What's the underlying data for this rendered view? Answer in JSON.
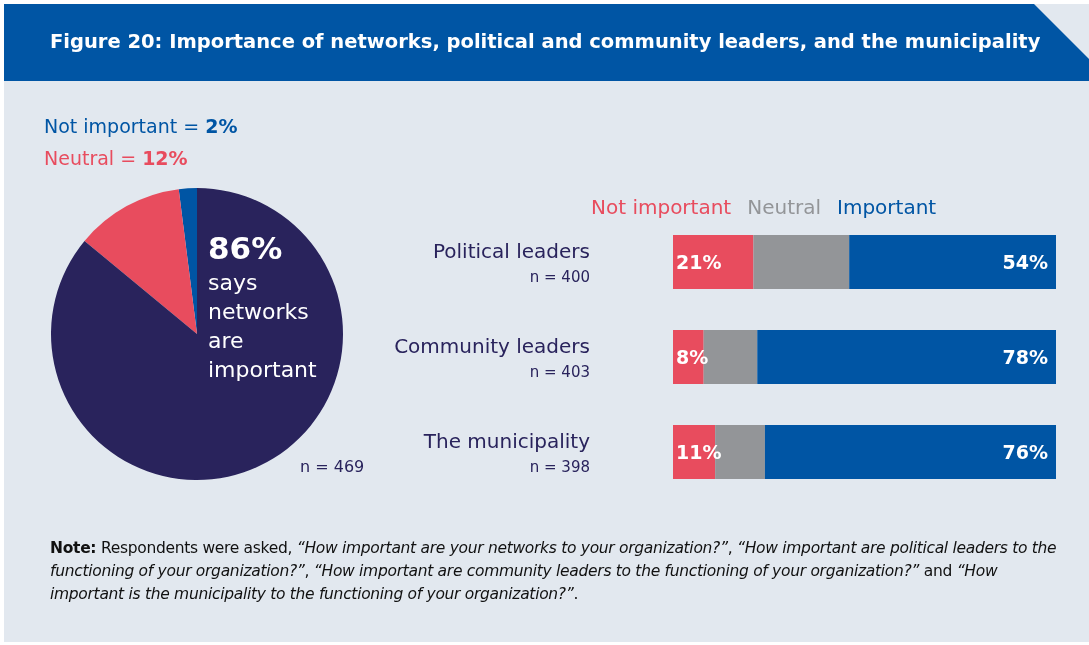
{
  "chart_data": [
    {
      "type": "pie",
      "title": "Figure 20: Importance of networks, political and community leaders, and the municipality",
      "categories": [
        null,
        null,
        "says networks are important"
      ],
      "values": [
        2,
        12,
        86
      ],
      "colors": [
        "#0055a4",
        "#e84c5e",
        "#29235c"
      ],
      "value_labels": [
        null,
        null,
        "86%"
      ],
      "annotations": [
        "Not important = 2%",
        "Neutral = 12%",
        "n = 469"
      ]
    },
    {
      "type": "bar",
      "orientation": "horizontal",
      "stacked": true,
      "legend": "top",
      "categories": [
        "Political leaders",
        "Community leaders",
        "The municipality"
      ],
      "series": [
        {
          "name": "Not important",
          "color": "#e84c5e",
          "values": [
            21,
            8,
            11
          ],
          "value_labels": [
            "21%",
            "8%",
            "11%"
          ]
        },
        {
          "name": "Neutral",
          "color": "#939598",
          "values": [
            25,
            14,
            13
          ],
          "value_labels": [
            null,
            null,
            null
          ]
        },
        {
          "name": "Important",
          "color": "#0055a4",
          "values": [
            54,
            78,
            76
          ],
          "value_labels": [
            "54%",
            "78%",
            "76%"
          ]
        }
      ],
      "annotations": [
        "n = 400",
        "n = 403",
        "n = 398",
        "Note: Respondents were asked, “How important are your networks to your organization?”, “How important are political leaders to the functioning of your organization?”, “How important are community leaders to the functioning of your organization?” and “How important is the municipality to the functioning of your organization?”."
      ]
    }
  ]
}
